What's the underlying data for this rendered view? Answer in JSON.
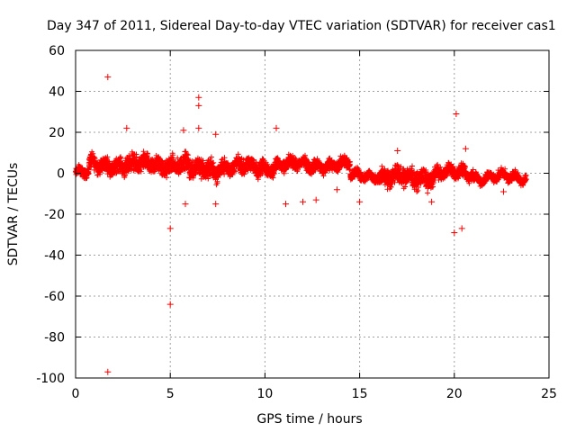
{
  "chart_data": {
    "type": "scatter",
    "title": "Day 347 of 2011, Sidereal Day-to-day VTEC variation (SDTVAR) for receiver cas1",
    "xlabel": "GPS time / hours",
    "ylabel": "SDTVAR / TECUs",
    "xlim": [
      0,
      25
    ],
    "ylim": [
      -100,
      60
    ],
    "xticks": [
      "0",
      "5",
      "10",
      "15",
      "20",
      "25"
    ],
    "yticks": [
      "60",
      "40",
      "20",
      "0",
      "-20",
      "-40",
      "-60",
      "-80",
      "-100"
    ],
    "grid": true,
    "marker": "+",
    "marker_color": "#ff0000",
    "dense_band": [
      {
        "start": 0.0,
        "end": 0.7,
        "center": 0,
        "halfwidth": 3
      },
      {
        "start": 0.7,
        "end": 2.5,
        "center": 4,
        "halfwidth": 5
      },
      {
        "start": 2.5,
        "end": 6.0,
        "center": 4,
        "halfwidth": 6
      },
      {
        "start": 6.0,
        "end": 7.5,
        "center": 2,
        "halfwidth": 7
      },
      {
        "start": 7.5,
        "end": 10.5,
        "center": 3,
        "halfwidth": 5
      },
      {
        "start": 10.5,
        "end": 12.0,
        "center": 4,
        "halfwidth": 4
      },
      {
        "start": 12.0,
        "end": 14.5,
        "center": 4,
        "halfwidth": 4
      },
      {
        "start": 14.5,
        "end": 16.0,
        "center": -1,
        "halfwidth": 3
      },
      {
        "start": 16.0,
        "end": 19.0,
        "center": -2,
        "halfwidth": 6
      },
      {
        "start": 19.0,
        "end": 21.0,
        "center": 0,
        "halfwidth": 4
      },
      {
        "start": 21.0,
        "end": 23.8,
        "center": -2,
        "halfwidth": 3
      }
    ],
    "outliers": [
      {
        "x": 1.7,
        "y": 47
      },
      {
        "x": 1.7,
        "y": -97
      },
      {
        "x": 2.7,
        "y": 22
      },
      {
        "x": 5.0,
        "y": -27
      },
      {
        "x": 5.0,
        "y": -64
      },
      {
        "x": 5.7,
        "y": 21
      },
      {
        "x": 5.8,
        "y": -15
      },
      {
        "x": 6.5,
        "y": 37
      },
      {
        "x": 6.5,
        "y": 33
      },
      {
        "x": 6.5,
        "y": 22
      },
      {
        "x": 7.4,
        "y": 19
      },
      {
        "x": 7.4,
        "y": -15
      },
      {
        "x": 10.6,
        "y": 22
      },
      {
        "x": 11.1,
        "y": -15
      },
      {
        "x": 12.0,
        "y": -14
      },
      {
        "x": 12.7,
        "y": -13
      },
      {
        "x": 13.8,
        "y": -8
      },
      {
        "x": 15.0,
        "y": -14
      },
      {
        "x": 17.0,
        "y": 11
      },
      {
        "x": 18.8,
        "y": -14
      },
      {
        "x": 20.1,
        "y": 29
      },
      {
        "x": 20.0,
        "y": -29
      },
      {
        "x": 20.4,
        "y": -27
      },
      {
        "x": 20.6,
        "y": 12
      },
      {
        "x": 22.6,
        "y": -9
      }
    ]
  }
}
